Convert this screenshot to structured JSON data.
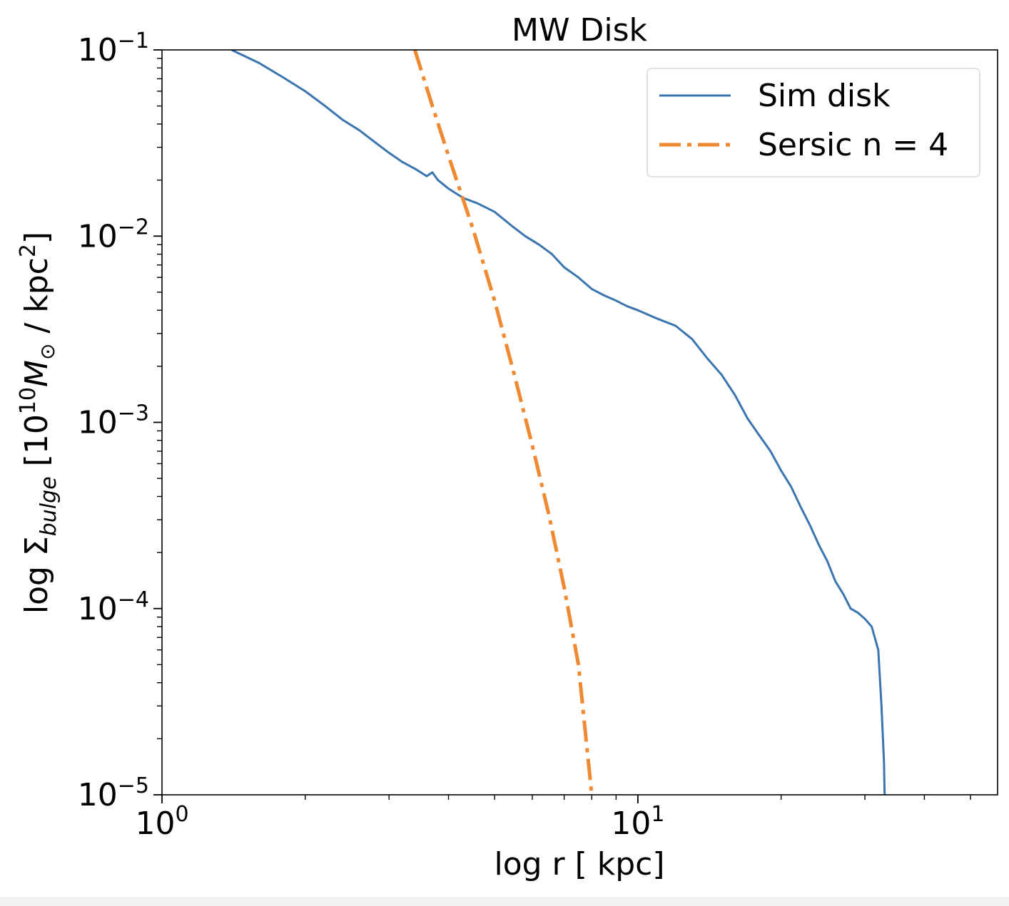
{
  "chart_data": {
    "type": "line",
    "title": "MW Disk",
    "xlabel": "log r [ kpc]",
    "ylabel": {
      "prefix": "log Σ",
      "subscript": "bulge",
      "bracket_open": " [10",
      "exponent": "10",
      "mass_symbol": "M",
      "sun_subscript": "⊙",
      "unit": " / kpc",
      "unit_exponent": "2",
      "bracket_close": "]"
    },
    "xscale": "log",
    "yscale": "log",
    "xlim": [
      1,
      57
    ],
    "ylim": [
      1e-05,
      0.1
    ],
    "x_major_ticks": [
      {
        "value": 1,
        "base": "10",
        "exp": "0"
      },
      {
        "value": 10,
        "base": "10",
        "exp": "1"
      }
    ],
    "y_major_ticks": [
      {
        "value": 0.1,
        "base": "10",
        "exp": "−1"
      },
      {
        "value": 0.01,
        "base": "10",
        "exp": "−2"
      },
      {
        "value": 0.001,
        "base": "10",
        "exp": "−3"
      },
      {
        "value": 0.0001,
        "base": "10",
        "exp": "−4"
      },
      {
        "value": 1e-05,
        "base": "10",
        "exp": "−5"
      }
    ],
    "legend": {
      "placement": "top-right"
    },
    "series": [
      {
        "name": "Sim disk",
        "color": "#3b75af",
        "style": "solid",
        "x": [
          1.4,
          1.6,
          1.8,
          2.0,
          2.2,
          2.4,
          2.6,
          2.8,
          3.0,
          3.2,
          3.4,
          3.6,
          3.7,
          3.8,
          4.0,
          4.3,
          4.6,
          5.0,
          5.4,
          5.8,
          6.2,
          6.6,
          7.0,
          7.5,
          8.0,
          8.5,
          9.0,
          9.5,
          10.0,
          11.0,
          12.0,
          13.0,
          14.0,
          15.0,
          16.0,
          17.0,
          18.0,
          19.0,
          20.0,
          21.0,
          22.0,
          23.0,
          24.0,
          25.0,
          26.0,
          27.0,
          28.0,
          29.0,
          30.0,
          31.0,
          32.0,
          32.5,
          32.9,
          33.0
        ],
        "y": [
          0.1,
          0.085,
          0.071,
          0.06,
          0.05,
          0.042,
          0.037,
          0.032,
          0.028,
          0.025,
          0.023,
          0.021,
          0.022,
          0.02,
          0.018,
          0.016,
          0.015,
          0.0135,
          0.0115,
          0.01,
          0.009,
          0.008,
          0.0068,
          0.006,
          0.0052,
          0.0048,
          0.0045,
          0.0042,
          0.004,
          0.0036,
          0.0033,
          0.0028,
          0.0022,
          0.0018,
          0.0014,
          0.00105,
          0.00085,
          0.0007,
          0.00055,
          0.00045,
          0.00035,
          0.00028,
          0.00022,
          0.00018,
          0.00014,
          0.00012,
          0.0001,
          9.5e-05,
          8.8e-05,
          8e-05,
          6e-05,
          3e-05,
          1.5e-05,
          1e-05
        ]
      },
      {
        "name": "Sersic n = 4",
        "color": "#ef8a32",
        "style": "dashdot",
        "x": [
          3.4,
          3.7,
          4.0,
          4.5,
          5.0,
          5.5,
          6.0,
          6.5,
          7.0,
          7.5,
          8.0
        ],
        "y": [
          0.1,
          0.05,
          0.027,
          0.011,
          0.0045,
          0.0018,
          0.00075,
          0.00032,
          0.00013,
          5e-05,
          1e-05
        ]
      }
    ]
  }
}
